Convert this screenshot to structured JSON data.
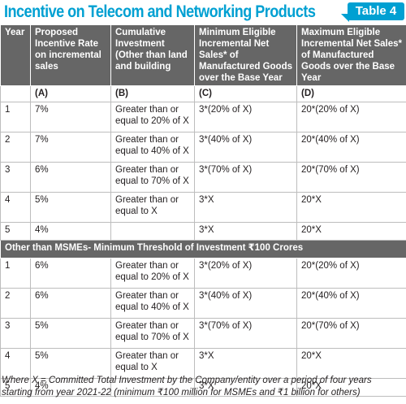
{
  "title": "Incentive on Telecom and Networking Products",
  "table_tag": "Table 4",
  "headers": [
    "Year",
    "Proposed Incentive Rate on incremental sales",
    "Cumulative Investment (Other than land and building",
    "Minimum Eligible Incremental Net Sales* of Manufactured Goods over the Base Year",
    "Maximum Eligible Incremental Net Sales* of Manufactured Goods over the Base Year"
  ],
  "letters": [
    "",
    "(A)",
    "(B)",
    "(C)",
    "(D)"
  ],
  "msme_rows": [
    {
      "year": "1",
      "rate": "7%",
      "investment": "Greater than or equal to 20% of X",
      "min": "3*(20% of X)",
      "max": "20*(20% of X)"
    },
    {
      "year": "2",
      "rate": "7%",
      "investment": "Greater than or equal to 40% of X",
      "min": "3*(40% of X)",
      "max": "20*(40% of X)"
    },
    {
      "year": "3",
      "rate": "6%",
      "investment": "Greater than or equal to 70% of X",
      "min": "3*(70% of X)",
      "max": "20*(70% of X)"
    },
    {
      "year": "4",
      "rate": "5%",
      "investment": "Greater than or equal to  X",
      "min": "3*X",
      "max": "20*X"
    },
    {
      "year": "5",
      "rate": "4%",
      "investment": "",
      "min": "3*X",
      "max": "20*X"
    }
  ],
  "section_label": "Other than MSMEs- Minimum Threshold of Investment ₹100 Crores",
  "other_rows": [
    {
      "year": "1",
      "rate": "6%",
      "investment": "Greater than or equal to 20% of X",
      "min": "3*(20% of X)",
      "max": "20*(20% of X)"
    },
    {
      "year": "2",
      "rate": "6%",
      "investment": "Greater than or equal to 40% of X",
      "min": "3*(40% of X)",
      "max": "20*(40% of X)"
    },
    {
      "year": "3",
      "rate": "5%",
      "investment": "Greater than or equal to 70% of X",
      "min": "3*(70% of X)",
      "max": "20*(70% of X)"
    },
    {
      "year": "4",
      "rate": "5%",
      "investment": "Greater than or equal to  X",
      "min": "3*X",
      "max": "20*X"
    },
    {
      "year": "5",
      "rate": "4%",
      "investment": "",
      "min": "3*X",
      "max": "20*X"
    }
  ],
  "footnote": "Where X = Committed Total Investment by the Company/entity over a period of four years starting from year 2021-22 (minimum  ₹100 million for MSMEs and  ₹1 billion for others)",
  "colors": {
    "accent": "#00a0d2",
    "header_bg": "#666666"
  }
}
